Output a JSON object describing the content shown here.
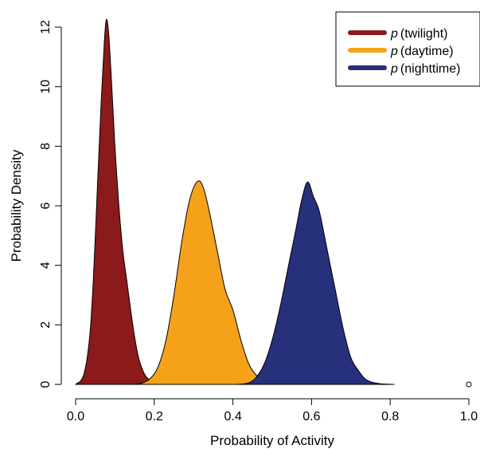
{
  "chart_data": {
    "type": "area",
    "title": "",
    "xlabel": "Probability of Activity",
    "ylabel": "Probability Density",
    "xlim": [
      0.0,
      1.0
    ],
    "ylim": [
      0,
      12.3
    ],
    "xticks": [
      "0.0",
      "0.2",
      "0.4",
      "0.6",
      "0.8",
      "1.0"
    ],
    "yticks": [
      "0",
      "2",
      "4",
      "6",
      "8",
      "10",
      "12"
    ],
    "grid": false,
    "legend_position": "top-right",
    "series": [
      {
        "name": "twilight",
        "color": "#8B1A1A",
        "points": [
          [
            0.0,
            0.0
          ],
          [
            0.02,
            0.3
          ],
          [
            0.035,
            1.5
          ],
          [
            0.045,
            3.5
          ],
          [
            0.055,
            6.5
          ],
          [
            0.065,
            9.5
          ],
          [
            0.073,
            11.5
          ],
          [
            0.078,
            12.25
          ],
          [
            0.084,
            11.8
          ],
          [
            0.092,
            10.0
          ],
          [
            0.1,
            8.0
          ],
          [
            0.11,
            6.0
          ],
          [
            0.12,
            4.5
          ],
          [
            0.13,
            3.5
          ],
          [
            0.14,
            2.5
          ],
          [
            0.15,
            1.6
          ],
          [
            0.16,
            0.9
          ],
          [
            0.17,
            0.5
          ],
          [
            0.18,
            0.25
          ],
          [
            0.2,
            0.05
          ],
          [
            0.22,
            0.0
          ]
        ]
      },
      {
        "name": "daytime",
        "color": "#F5A21A",
        "points": [
          [
            0.15,
            0.0
          ],
          [
            0.17,
            0.05
          ],
          [
            0.19,
            0.2
          ],
          [
            0.21,
            0.6
          ],
          [
            0.23,
            1.5
          ],
          [
            0.25,
            3.0
          ],
          [
            0.27,
            4.8
          ],
          [
            0.29,
            6.2
          ],
          [
            0.31,
            6.82
          ],
          [
            0.325,
            6.6
          ],
          [
            0.34,
            5.8
          ],
          [
            0.36,
            4.5
          ],
          [
            0.38,
            3.2
          ],
          [
            0.4,
            2.5
          ],
          [
            0.42,
            1.5
          ],
          [
            0.44,
            0.7
          ],
          [
            0.46,
            0.3
          ],
          [
            0.48,
            0.1
          ],
          [
            0.5,
            0.0
          ]
        ]
      },
      {
        "name": "nighttime",
        "color": "#27307A",
        "points": [
          [
            0.41,
            0.0
          ],
          [
            0.44,
            0.05
          ],
          [
            0.46,
            0.25
          ],
          [
            0.48,
            0.7
          ],
          [
            0.5,
            1.5
          ],
          [
            0.52,
            2.6
          ],
          [
            0.54,
            3.9
          ],
          [
            0.56,
            5.2
          ],
          [
            0.575,
            6.2
          ],
          [
            0.59,
            6.8
          ],
          [
            0.605,
            6.3
          ],
          [
            0.62,
            5.8
          ],
          [
            0.64,
            4.5
          ],
          [
            0.66,
            3.2
          ],
          [
            0.68,
            1.9
          ],
          [
            0.7,
            0.9
          ],
          [
            0.72,
            0.45
          ],
          [
            0.74,
            0.15
          ],
          [
            0.77,
            0.03
          ],
          [
            0.81,
            0.0
          ]
        ]
      }
    ],
    "extra_point": {
      "x": 1.0,
      "y": 0
    }
  },
  "legend": {
    "prefix": "p",
    "items": [
      "twilight",
      "daytime",
      "nighttime"
    ]
  }
}
